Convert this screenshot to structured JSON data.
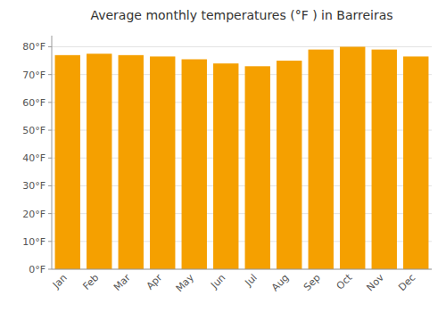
{
  "chart_data": {
    "type": "bar",
    "title": "Average monthly temperatures (°F ) in Barreiras",
    "categories": [
      "Jan",
      "Feb",
      "Mar",
      "Apr",
      "May",
      "Jun",
      "Jul",
      "Aug",
      "Sep",
      "Oct",
      "Nov",
      "Dec"
    ],
    "values": [
      77,
      77.5,
      77,
      76.5,
      75.5,
      74,
      73,
      75,
      79,
      80,
      79,
      76.5
    ],
    "color": "#F5A000",
    "ylim": [
      0,
      84
    ],
    "yticks": [
      {
        "value": 0,
        "label": "0°F"
      },
      {
        "value": 10,
        "label": "10°F"
      },
      {
        "value": 20,
        "label": "20°F"
      },
      {
        "value": 30,
        "label": "30°F"
      },
      {
        "value": 40,
        "label": "40°F"
      },
      {
        "value": 50,
        "label": "50°F"
      },
      {
        "value": 60,
        "label": "60°F"
      },
      {
        "value": 70,
        "label": "70°F"
      },
      {
        "value": 80,
        "label": "80°F"
      }
    ],
    "grid": true
  }
}
